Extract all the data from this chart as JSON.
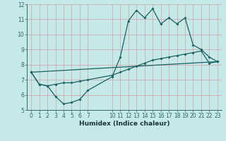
{
  "title": "",
  "xlabel": "Humidex (Indice chaleur)",
  "bg_color": "#c5e8e8",
  "grid_color": "#d4a0a8",
  "line_color": "#1a6060",
  "xlim": [
    -0.5,
    23.5
  ],
  "ylim": [
    5,
    12
  ],
  "xticks": [
    0,
    1,
    2,
    3,
    4,
    5,
    6,
    7,
    10,
    11,
    12,
    13,
    14,
    15,
    16,
    17,
    18,
    19,
    20,
    21,
    22,
    23
  ],
  "yticks": [
    5,
    6,
    7,
    8,
    9,
    10,
    11,
    12
  ],
  "line1_x": [
    0,
    1,
    2,
    3,
    4,
    5,
    6,
    7,
    10,
    11,
    12,
    13,
    14,
    15,
    16,
    17,
    18,
    19,
    20,
    21,
    22,
    23
  ],
  "line1_y": [
    7.5,
    6.7,
    6.6,
    5.9,
    5.4,
    5.5,
    5.7,
    6.3,
    7.2,
    8.5,
    10.9,
    11.6,
    11.1,
    11.7,
    10.7,
    11.1,
    10.7,
    11.1,
    9.3,
    9.0,
    8.5,
    8.2
  ],
  "line2_x": [
    0,
    1,
    2,
    3,
    4,
    5,
    6,
    7,
    10,
    11,
    12,
    13,
    14,
    15,
    16,
    17,
    18,
    19,
    20,
    21,
    22,
    23
  ],
  "line2_y": [
    7.5,
    6.7,
    6.6,
    6.7,
    6.8,
    6.8,
    6.9,
    7.0,
    7.3,
    7.5,
    7.7,
    7.9,
    8.1,
    8.3,
    8.4,
    8.5,
    8.6,
    8.7,
    8.8,
    8.9,
    8.1,
    8.2
  ],
  "line3_x": [
    0,
    23
  ],
  "line3_y": [
    7.5,
    8.2
  ],
  "marker_size": 2.0,
  "line_width": 0.9,
  "tick_fontsize": 5.5,
  "xlabel_fontsize": 6.5
}
